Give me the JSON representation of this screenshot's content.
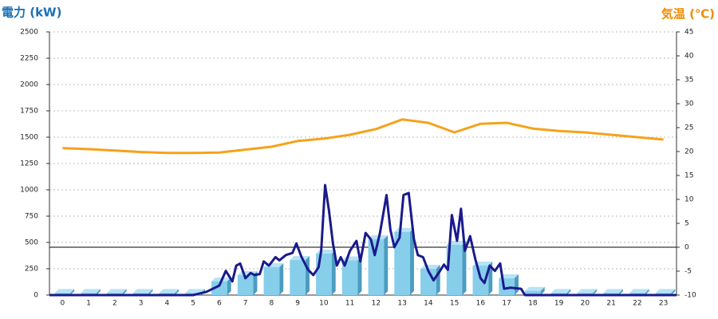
{
  "chart_data": {
    "type": "combo",
    "ylabel": "電力 (kW)",
    "y2label": "気温 (℃)",
    "categories": [
      "0",
      "1",
      "2",
      "3",
      "4",
      "5",
      "6",
      "7",
      "8",
      "9",
      "10",
      "11",
      "12",
      "13",
      "14",
      "15",
      "16",
      "17",
      "18",
      "19",
      "20",
      "21",
      "22",
      "23"
    ],
    "ylim": [
      0,
      2500
    ],
    "yticks": [
      0,
      250,
      500,
      750,
      1000,
      1250,
      1500,
      1750,
      2000,
      2250,
      2500
    ],
    "y2lim": [
      -10,
      45
    ],
    "y2ticks": [
      -10,
      -5,
      0,
      5,
      10,
      15,
      20,
      25,
      30,
      35,
      40,
      45
    ],
    "ylabel_color": "#1a6fb5",
    "y2label_color": "#f08c00",
    "grid": true,
    "zero_line_axis": "y2",
    "series": [
      {
        "type": "bar",
        "color": "#87ceeb",
        "values": [
          20,
          20,
          20,
          20,
          20,
          20,
          130,
          190,
          265,
          333,
          394,
          330,
          530,
          600,
          250,
          477,
          280,
          160,
          40,
          20,
          20,
          20,
          20,
          20
        ]
      },
      {
        "type": "line",
        "color": "#1a1a8c",
        "x": [
          -0.5,
          5,
          5.5,
          6,
          6.25,
          6.5,
          6.65,
          6.8,
          7,
          7.2,
          7.35,
          7.55,
          7.7,
          7.9,
          8.15,
          8.3,
          8.55,
          8.8,
          8.95,
          9.15,
          9.4,
          9.6,
          9.8,
          9.9,
          10.05,
          10.2,
          10.35,
          10.5,
          10.65,
          10.8,
          11,
          11.25,
          11.4,
          11.6,
          11.8,
          11.95,
          12.15,
          12.4,
          12.55,
          12.7,
          12.9,
          13.05,
          13.25,
          13.45,
          13.6,
          13.8,
          14,
          14.2,
          14.45,
          14.6,
          14.75,
          14.9,
          15.1,
          15.25,
          15.4,
          15.6,
          15.8,
          16,
          16.15,
          16.35,
          16.55,
          16.75,
          16.9,
          17.15,
          17.55,
          17.7,
          18,
          23.5
        ],
        "values": [
          0,
          0,
          30,
          90,
          230,
          130,
          280,
          300,
          160,
          210,
          190,
          200,
          320,
          280,
          360,
          330,
          380,
          400,
          490,
          360,
          240,
          190,
          265,
          420,
          1045,
          800,
          490,
          280,
          360,
          280,
          420,
          515,
          320,
          590,
          530,
          380,
          590,
          950,
          620,
          455,
          545,
          950,
          970,
          530,
          380,
          360,
          230,
          140,
          230,
          290,
          240,
          760,
          515,
          820,
          420,
          560,
          340,
          160,
          115,
          280,
          230,
          300,
          60,
          70,
          60,
          0,
          0,
          0
        ]
      },
      {
        "type": "line",
        "axis": "y2",
        "color": "#f5a21b",
        "values": [
          20.7,
          20.5,
          20.2,
          19.9,
          19.7,
          19.7,
          19.8,
          20.4,
          21.0,
          22.2,
          22.7,
          23.5,
          24.7,
          26.7,
          26.0,
          24.0,
          25.8,
          26.0,
          24.8,
          24.3,
          24.0,
          23.5,
          23.0,
          22.5
        ]
      }
    ]
  }
}
